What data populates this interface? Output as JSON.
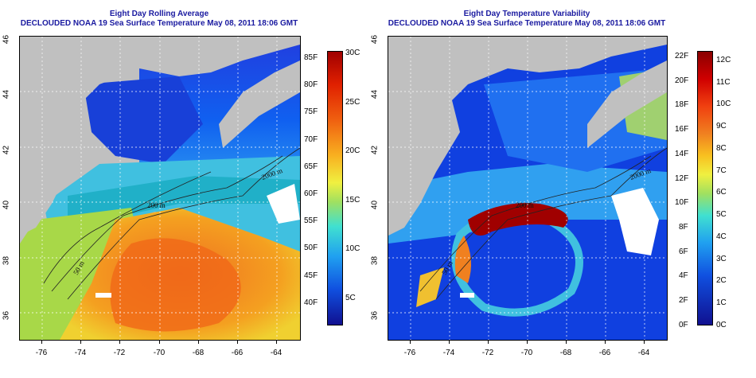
{
  "left_panel": {
    "title_line1": "Eight Day Rolling Average",
    "title_line2": "DECLOUDED NOAA 19 Sea Surface Temperature May 08, 2011 18:06 GMT",
    "colorbar_left_labels": [
      "85F",
      "80F",
      "75F",
      "70F",
      "65F",
      "60F",
      "55F",
      "50F",
      "45F",
      "40F"
    ],
    "colorbar_right_labels": [
      "30C",
      "25C",
      "20C",
      "15C",
      "10C",
      "5C"
    ],
    "contour_labels": [
      "2000 m",
      "200 m",
      "50 m"
    ]
  },
  "right_panel": {
    "title_line1": "Eight Day Temperature Variability",
    "title_line2": "DECLOUDED NOAA 19 Sea Surface Temperature May 08, 2011 18:06 GMT",
    "colorbar_left_labels": [
      "22F",
      "20F",
      "18F",
      "16F",
      "14F",
      "12F",
      "10F",
      "8F",
      "6F",
      "4F",
      "2F",
      "0F"
    ],
    "colorbar_right_labels": [
      "12C",
      "11C",
      "10C",
      "9C",
      "8C",
      "7C",
      "6C",
      "5C",
      "4C",
      "3C",
      "2C",
      "1C",
      "0C"
    ],
    "contour_labels": [
      "2000 m",
      "200 m",
      "50 m"
    ]
  },
  "axes": {
    "lat_labels": [
      "46",
      "44",
      "42",
      "40",
      "38",
      "36"
    ],
    "lon_labels": [
      "-76",
      "-74",
      "-72",
      "-70",
      "-68",
      "-66",
      "-64"
    ]
  },
  "colors": {
    "title": "#1a1aa0",
    "land": "#c0c0c0"
  }
}
